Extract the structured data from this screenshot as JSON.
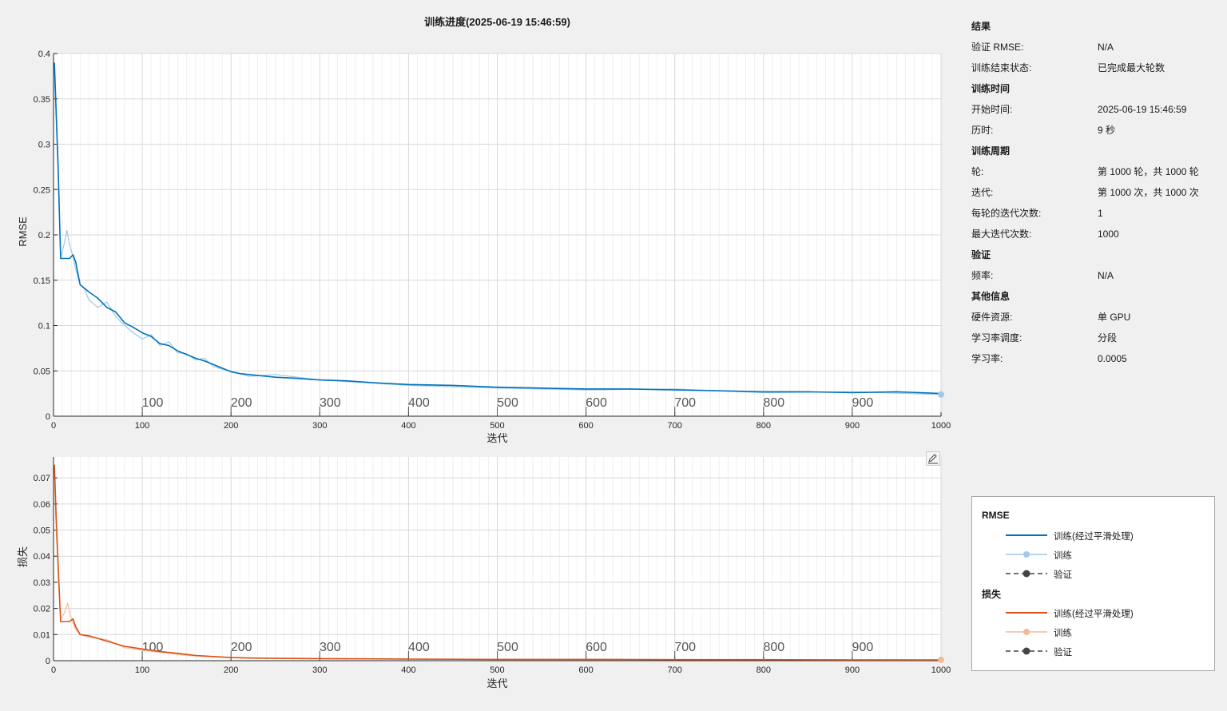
{
  "title": "训练进度(2025-06-19 15:46:59)",
  "colors": {
    "rmse_smooth": "#0072bd",
    "rmse_raw": "#9fc9e8",
    "loss_smooth": "#d95319",
    "loss_raw": "#f2b99a",
    "validation": "#444444",
    "grid": "#d9d9d9",
    "axis": "#262626"
  },
  "info": {
    "sections": [
      {
        "title": "结果",
        "rows": [
          {
            "k": "验证 RMSE:",
            "v": "N/A"
          },
          {
            "k": "训练结束状态:",
            "v": "已完成最大轮数"
          }
        ]
      },
      {
        "title": "训练时间",
        "rows": [
          {
            "k": "开始时间:",
            "v": "2025-06-19 15:46:59"
          },
          {
            "k": "历时:",
            "v": "9 秒"
          }
        ]
      },
      {
        "title": "训练周期",
        "rows": [
          {
            "k": "轮:",
            "v": "第 1000 轮，共 1000 轮"
          },
          {
            "k": "迭代:",
            "v": "第 1000 次，共 1000 次"
          },
          {
            "k": "每轮的迭代次数:",
            "v": "1"
          },
          {
            "k": "最大迭代次数:",
            "v": "1000"
          }
        ]
      },
      {
        "title": "验证",
        "rows": [
          {
            "k": "频率:",
            "v": "N/A"
          }
        ]
      },
      {
        "title": "其他信息",
        "rows": [
          {
            "k": "硬件资源:",
            "v": "单 GPU"
          },
          {
            "k": "学习率调度:",
            "v": "分段"
          },
          {
            "k": "学习率:",
            "v": "0.0005"
          }
        ]
      }
    ]
  },
  "legend": {
    "rmse_title": "RMSE",
    "loss_title": "损失",
    "smooth_label": "训练(经过平滑处理)",
    "train_label": "训练",
    "val_label": "验证"
  },
  "icons": {
    "edit": "edit-pen-icon"
  },
  "chart_data": [
    {
      "type": "line",
      "ylabel": "RMSE",
      "xlabel": "迭代",
      "xlim": [
        0,
        1000
      ],
      "ylim": [
        0,
        0.4
      ],
      "xticks": [
        0,
        100,
        200,
        300,
        400,
        500,
        600,
        700,
        800,
        900,
        1000
      ],
      "yticks": [
        0,
        0.05,
        0.1,
        0.15,
        0.2,
        0.25,
        0.3,
        0.35,
        0.4
      ],
      "ytick_labels": [
        "0",
        "0.05",
        "0.1",
        "0.15",
        "0.2",
        "0.25",
        "0.3",
        "0.35",
        "0.4"
      ],
      "epoch_labels": [
        100,
        200,
        300,
        400,
        500,
        600,
        700,
        800,
        900
      ],
      "grid": true,
      "series": [
        {
          "name": "训练(经过平滑处理)",
          "x": [
            1,
            5,
            8,
            12,
            18,
            22,
            25,
            30,
            40,
            50,
            60,
            70,
            80,
            90,
            100,
            110,
            120,
            130,
            140,
            150,
            160,
            170,
            180,
            190,
            200,
            210,
            220,
            230,
            240,
            250,
            270,
            300,
            330,
            360,
            400,
            450,
            500,
            550,
            600,
            650,
            700,
            750,
            800,
            850,
            900,
            950,
            1000
          ],
          "y": [
            0.39,
            0.28,
            0.174,
            0.174,
            0.174,
            0.178,
            0.17,
            0.145,
            0.137,
            0.13,
            0.12,
            0.115,
            0.103,
            0.098,
            0.092,
            0.088,
            0.08,
            0.078,
            0.072,
            0.068,
            0.064,
            0.061,
            0.057,
            0.053,
            0.049,
            0.047,
            0.046,
            0.045,
            0.044,
            0.043,
            0.042,
            0.04,
            0.039,
            0.037,
            0.035,
            0.034,
            0.032,
            0.031,
            0.03,
            0.03,
            0.029,
            0.028,
            0.027,
            0.027,
            0.026,
            0.027,
            0.025
          ]
        },
        {
          "name": "训练",
          "x": [
            1,
            5,
            8,
            12,
            15,
            18,
            22,
            25,
            30,
            35,
            40,
            50,
            60,
            70,
            80,
            90,
            100,
            110,
            120,
            130,
            140,
            150,
            160,
            170,
            180,
            190,
            200,
            220,
            250,
            300,
            400,
            500,
            600,
            700,
            800,
            900,
            1000
          ],
          "y": [
            0.38,
            0.27,
            0.174,
            0.19,
            0.205,
            0.19,
            0.176,
            0.162,
            0.145,
            0.14,
            0.128,
            0.12,
            0.126,
            0.11,
            0.1,
            0.092,
            0.085,
            0.09,
            0.078,
            0.082,
            0.07,
            0.069,
            0.062,
            0.064,
            0.055,
            0.052,
            0.05,
            0.044,
            0.046,
            0.04,
            0.034,
            0.031,
            0.029,
            0.03,
            0.026,
            0.027,
            0.024
          ]
        }
      ]
    },
    {
      "type": "line",
      "ylabel": "损失",
      "xlabel": "迭代",
      "xlim": [
        0,
        1000
      ],
      "ylim": [
        0,
        0.078
      ],
      "xticks": [
        0,
        100,
        200,
        300,
        400,
        500,
        600,
        700,
        800,
        900,
        1000
      ],
      "yticks": [
        0,
        0.01,
        0.02,
        0.03,
        0.04,
        0.05,
        0.06,
        0.07
      ],
      "ytick_labels": [
        "0",
        "0.01",
        "0.02",
        "0.03",
        "0.04",
        "0.05",
        "0.06",
        "0.07"
      ],
      "epoch_labels": [
        100,
        200,
        300,
        400,
        500,
        600,
        700,
        800,
        900
      ],
      "grid": true,
      "series": [
        {
          "name": "训练(经过平滑处理)",
          "x": [
            1,
            3,
            6,
            8,
            12,
            18,
            22,
            25,
            30,
            40,
            60,
            80,
            100,
            120,
            140,
            160,
            180,
            200,
            220,
            250,
            300,
            350,
            400,
            500,
            600,
            700,
            800,
            900,
            1000
          ],
          "y": [
            0.075,
            0.055,
            0.03,
            0.015,
            0.015,
            0.015,
            0.016,
            0.013,
            0.01,
            0.0095,
            0.0075,
            0.0055,
            0.0045,
            0.0035,
            0.0028,
            0.002,
            0.0016,
            0.0012,
            0.001,
            0.0009,
            0.0008,
            0.0007,
            0.0006,
            0.0005,
            0.0005,
            0.0004,
            0.0004,
            0.0003,
            0.0003
          ]
        },
        {
          "name": "训练",
          "x": [
            1,
            3,
            6,
            8,
            12,
            16,
            20,
            25,
            30,
            40,
            60,
            80,
            100,
            150,
            200,
            300,
            500,
            700,
            1000
          ],
          "y": [
            0.074,
            0.05,
            0.028,
            0.016,
            0.018,
            0.022,
            0.016,
            0.012,
            0.01,
            0.009,
            0.008,
            0.005,
            0.004,
            0.002,
            0.0011,
            0.0007,
            0.0005,
            0.0004,
            0.0003
          ]
        }
      ]
    }
  ]
}
